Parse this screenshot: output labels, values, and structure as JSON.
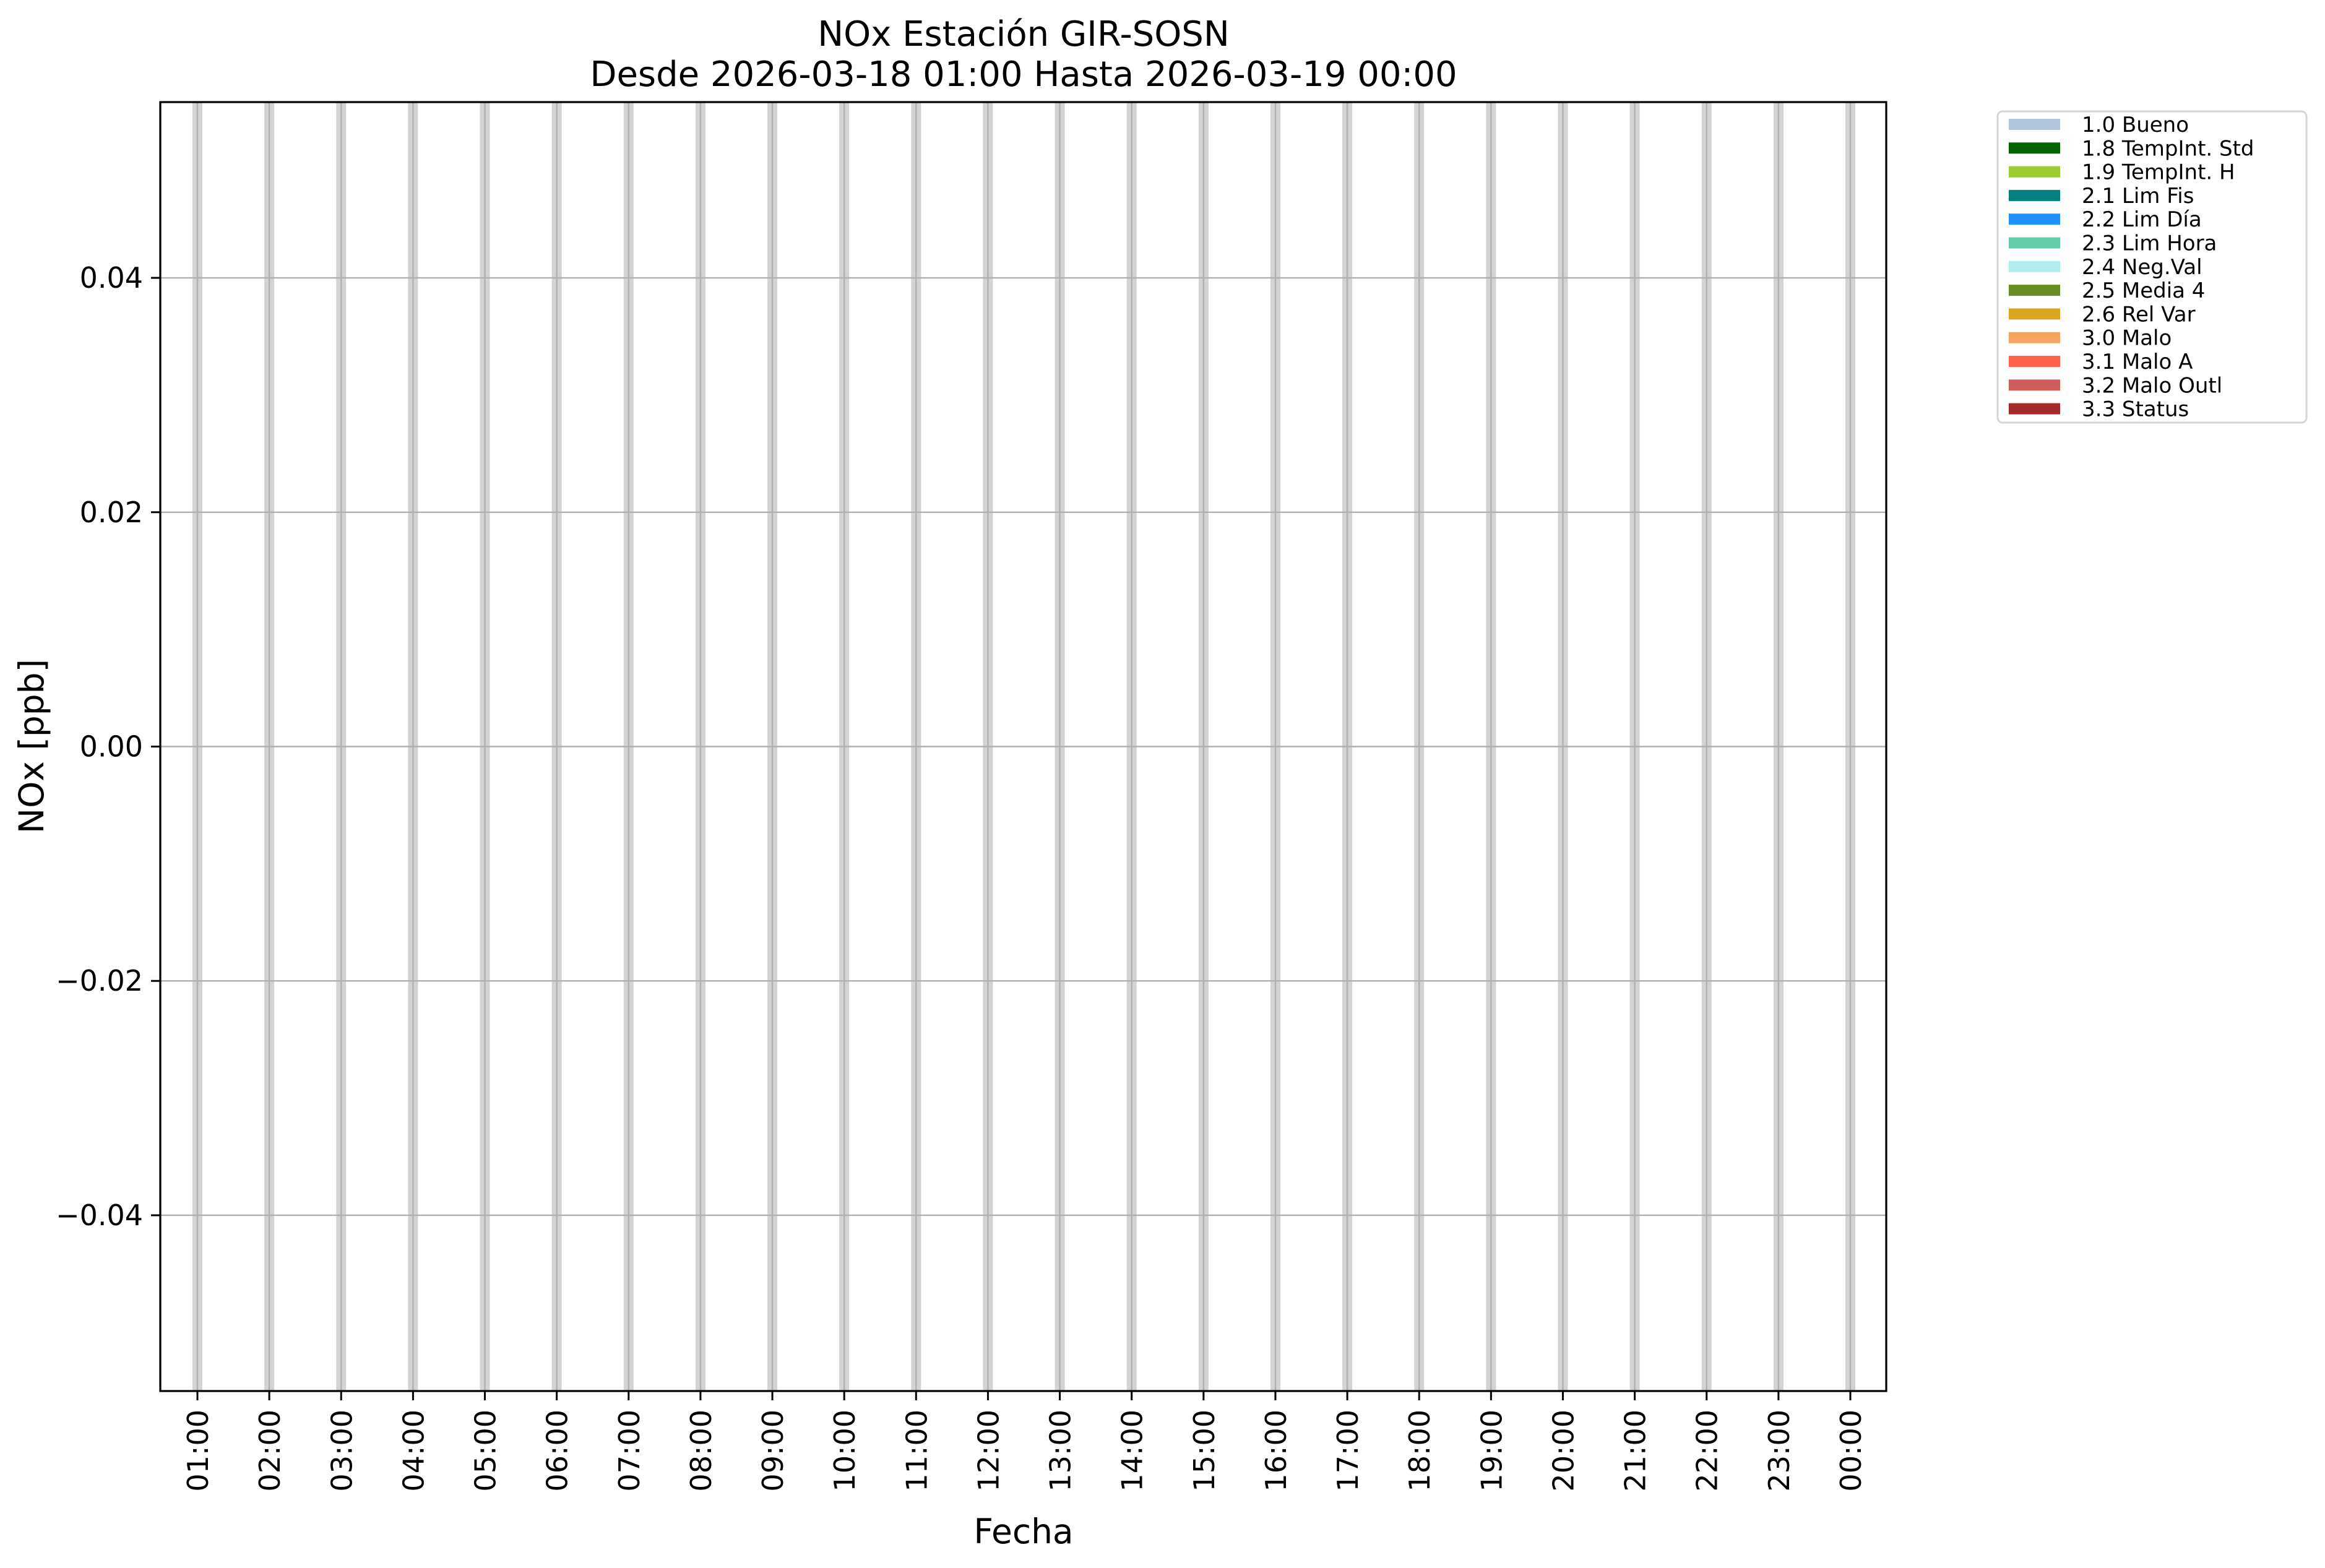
{
  "chart_data": {
    "type": "bar",
    "title": "NOx Estación GIR-SOSN",
    "subtitle": "Desde 2026-03-18 01:00 Hasta 2026-03-19 00:00",
    "xlabel": "Fecha",
    "ylabel": "NOx [ppb]",
    "ylim": [
      -0.055,
      0.055
    ],
    "yticks": [
      -0.04,
      -0.02,
      0.0,
      0.02,
      0.04
    ],
    "ytick_labels": [
      "−0.04",
      "−0.02",
      "0.00",
      "0.02",
      "0.04"
    ],
    "categories": [
      "01:00",
      "02:00",
      "03:00",
      "04:00",
      "05:00",
      "06:00",
      "07:00",
      "08:00",
      "09:00",
      "10:00",
      "11:00",
      "12:00",
      "13:00",
      "14:00",
      "15:00",
      "16:00",
      "17:00",
      "18:00",
      "19:00",
      "20:00",
      "21:00",
      "22:00",
      "23:00",
      "00:00"
    ],
    "values": [
      null,
      null,
      null,
      null,
      null,
      null,
      null,
      null,
      null,
      null,
      null,
      null,
      null,
      null,
      null,
      null,
      null,
      null,
      null,
      null,
      null,
      null,
      null,
      null
    ],
    "grid": true,
    "hour_band_color": "#d3d3d3",
    "grid_color": "#b0b0b0",
    "legend_placement": "outside-top-right",
    "legend": [
      {
        "label": "1.0 Bueno",
        "color": "#b0c4de"
      },
      {
        "label": "1.8 TempInt. Std",
        "color": "#006400"
      },
      {
        "label": "1.9 TempInt. H",
        "color": "#9acd32"
      },
      {
        "label": "2.1 Lim Fis",
        "color": "#008080"
      },
      {
        "label": "2.2 Lim Día",
        "color": "#1e90ff"
      },
      {
        "label": "2.3 Lim Hora",
        "color": "#66cdaa"
      },
      {
        "label": "2.4 Neg.Val",
        "color": "#afeeee"
      },
      {
        "label": "2.5 Media 4",
        "color": "#6b8e23"
      },
      {
        "label": "2.6 Rel Var",
        "color": "#daa520"
      },
      {
        "label": "3.0 Malo",
        "color": "#f4a460"
      },
      {
        "label": "3.1 Malo A",
        "color": "#ff6347"
      },
      {
        "label": "3.2 Malo Outl",
        "color": "#cd5c5c"
      },
      {
        "label": "3.3 Status",
        "color": "#a52a2a"
      }
    ]
  }
}
